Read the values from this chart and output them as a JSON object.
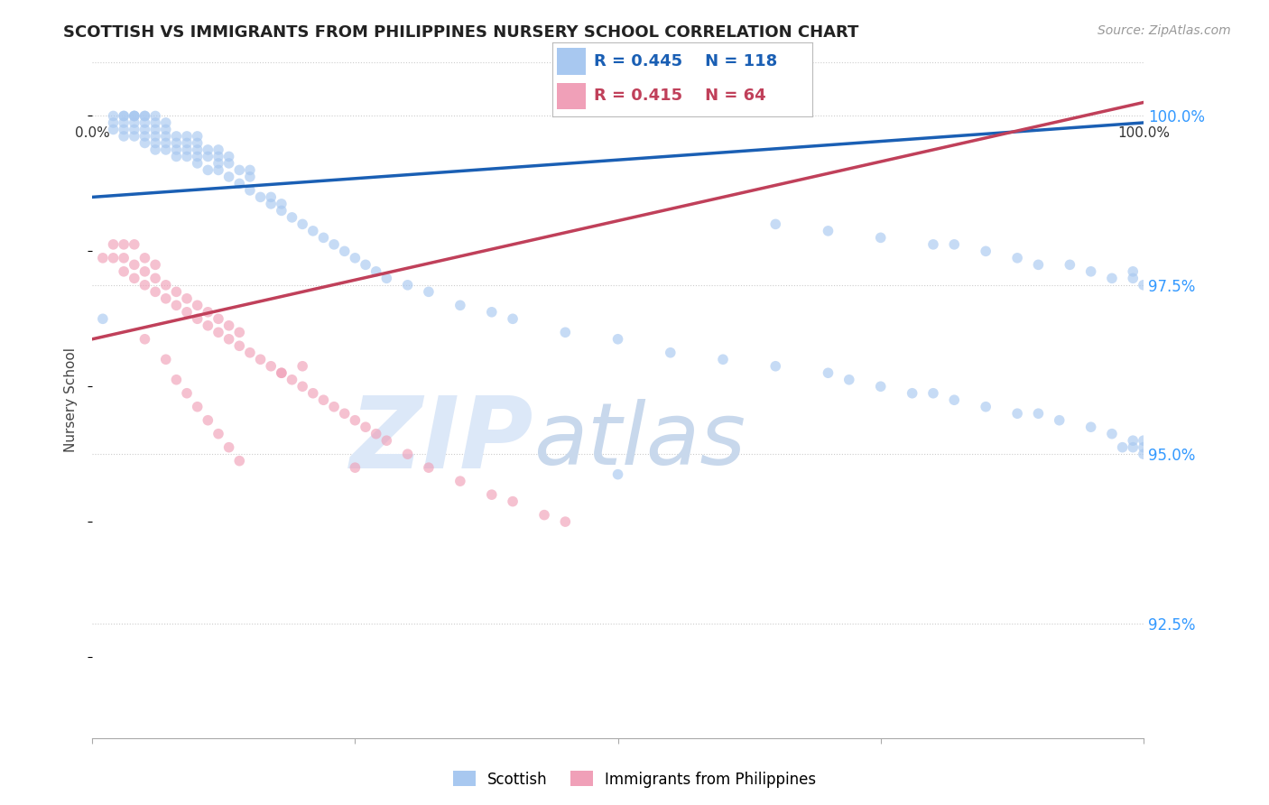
{
  "title": "SCOTTISH VS IMMIGRANTS FROM PHILIPPINES NURSERY SCHOOL CORRELATION CHART",
  "source": "Source: ZipAtlas.com",
  "ylabel": "Nursery School",
  "ytick_labels": [
    "92.5%",
    "95.0%",
    "97.5%",
    "100.0%"
  ],
  "ytick_values": [
    0.925,
    0.95,
    0.975,
    1.0
  ],
  "xlim": [
    0.0,
    1.0
  ],
  "ylim": [
    0.908,
    1.008
  ],
  "legend_blue_r": "R = 0.445",
  "legend_blue_n": "N = 118",
  "legend_pink_r": "R = 0.415",
  "legend_pink_n": "N = 64",
  "scatter_blue_color": "#a8c8f0",
  "scatter_pink_color": "#f0a0b8",
  "line_blue_color": "#1a5fb4",
  "line_pink_color": "#c0405a",
  "scatter_alpha": 0.65,
  "marker_size": 70,
  "blue_x": [
    0.01,
    0.02,
    0.02,
    0.02,
    0.03,
    0.03,
    0.03,
    0.03,
    0.03,
    0.04,
    0.04,
    0.04,
    0.04,
    0.04,
    0.04,
    0.05,
    0.05,
    0.05,
    0.05,
    0.05,
    0.05,
    0.06,
    0.06,
    0.06,
    0.06,
    0.06,
    0.06,
    0.07,
    0.07,
    0.07,
    0.07,
    0.07,
    0.08,
    0.08,
    0.08,
    0.08,
    0.09,
    0.09,
    0.09,
    0.09,
    0.1,
    0.1,
    0.1,
    0.1,
    0.1,
    0.11,
    0.11,
    0.11,
    0.12,
    0.12,
    0.12,
    0.12,
    0.13,
    0.13,
    0.13,
    0.14,
    0.14,
    0.15,
    0.15,
    0.15,
    0.16,
    0.17,
    0.17,
    0.18,
    0.18,
    0.19,
    0.2,
    0.21,
    0.22,
    0.23,
    0.24,
    0.25,
    0.26,
    0.27,
    0.28,
    0.3,
    0.32,
    0.35,
    0.38,
    0.4,
    0.45,
    0.5,
    0.55,
    0.6,
    0.65,
    0.7,
    0.72,
    0.75,
    0.78,
    0.8,
    0.82,
    0.85,
    0.88,
    0.9,
    0.92,
    0.95,
    0.97,
    0.99,
    1.0,
    1.0,
    0.65,
    0.7,
    0.75,
    0.8,
    0.82,
    0.85,
    0.88,
    0.9,
    0.93,
    0.95,
    0.97,
    0.99,
    1.0,
    0.5,
    0.98,
    0.99,
    1.0,
    0.99
  ],
  "blue_y": [
    0.97,
    0.998,
    0.999,
    1.0,
    0.997,
    0.998,
    0.999,
    1.0,
    1.0,
    0.997,
    0.998,
    0.999,
    1.0,
    1.0,
    1.0,
    0.996,
    0.997,
    0.998,
    0.999,
    1.0,
    1.0,
    0.995,
    0.996,
    0.997,
    0.998,
    0.999,
    1.0,
    0.995,
    0.996,
    0.997,
    0.998,
    0.999,
    0.994,
    0.995,
    0.996,
    0.997,
    0.994,
    0.995,
    0.996,
    0.997,
    0.993,
    0.994,
    0.995,
    0.996,
    0.997,
    0.992,
    0.994,
    0.995,
    0.992,
    0.993,
    0.994,
    0.995,
    0.991,
    0.993,
    0.994,
    0.99,
    0.992,
    0.989,
    0.991,
    0.992,
    0.988,
    0.987,
    0.988,
    0.986,
    0.987,
    0.985,
    0.984,
    0.983,
    0.982,
    0.981,
    0.98,
    0.979,
    0.978,
    0.977,
    0.976,
    0.975,
    0.974,
    0.972,
    0.971,
    0.97,
    0.968,
    0.967,
    0.965,
    0.964,
    0.963,
    0.962,
    0.961,
    0.96,
    0.959,
    0.959,
    0.958,
    0.957,
    0.956,
    0.956,
    0.955,
    0.954,
    0.953,
    0.952,
    0.952,
    0.951,
    0.984,
    0.983,
    0.982,
    0.981,
    0.981,
    0.98,
    0.979,
    0.978,
    0.978,
    0.977,
    0.976,
    0.976,
    0.975,
    0.947,
    0.951,
    0.951,
    0.95,
    0.977
  ],
  "pink_x": [
    0.01,
    0.02,
    0.02,
    0.03,
    0.03,
    0.03,
    0.04,
    0.04,
    0.04,
    0.05,
    0.05,
    0.05,
    0.06,
    0.06,
    0.06,
    0.07,
    0.07,
    0.08,
    0.08,
    0.09,
    0.09,
    0.1,
    0.1,
    0.11,
    0.11,
    0.12,
    0.12,
    0.13,
    0.13,
    0.14,
    0.14,
    0.15,
    0.16,
    0.17,
    0.18,
    0.19,
    0.2,
    0.21,
    0.22,
    0.23,
    0.24,
    0.25,
    0.26,
    0.27,
    0.28,
    0.3,
    0.32,
    0.35,
    0.38,
    0.4,
    0.43,
    0.45,
    0.2,
    0.1,
    0.12,
    0.14,
    0.25,
    0.18,
    0.08,
    0.05,
    0.07,
    0.09,
    0.11,
    0.13
  ],
  "pink_y": [
    0.979,
    0.979,
    0.981,
    0.977,
    0.979,
    0.981,
    0.976,
    0.978,
    0.981,
    0.975,
    0.977,
    0.979,
    0.974,
    0.976,
    0.978,
    0.973,
    0.975,
    0.972,
    0.974,
    0.971,
    0.973,
    0.97,
    0.972,
    0.969,
    0.971,
    0.968,
    0.97,
    0.967,
    0.969,
    0.966,
    0.968,
    0.965,
    0.964,
    0.963,
    0.962,
    0.961,
    0.96,
    0.959,
    0.958,
    0.957,
    0.956,
    0.955,
    0.954,
    0.953,
    0.952,
    0.95,
    0.948,
    0.946,
    0.944,
    0.943,
    0.941,
    0.94,
    0.963,
    0.957,
    0.953,
    0.949,
    0.948,
    0.962,
    0.961,
    0.967,
    0.964,
    0.959,
    0.955,
    0.951
  ],
  "blue_trend_x": [
    0.0,
    1.0
  ],
  "blue_trend_y": [
    0.988,
    0.999
  ],
  "pink_trend_x": [
    0.0,
    1.0
  ],
  "pink_trend_y": [
    0.967,
    1.002
  ],
  "background_color": "#ffffff",
  "grid_color": "#cccccc",
  "watermark_color": "#dce8f8",
  "watermark_fontsize": 80
}
